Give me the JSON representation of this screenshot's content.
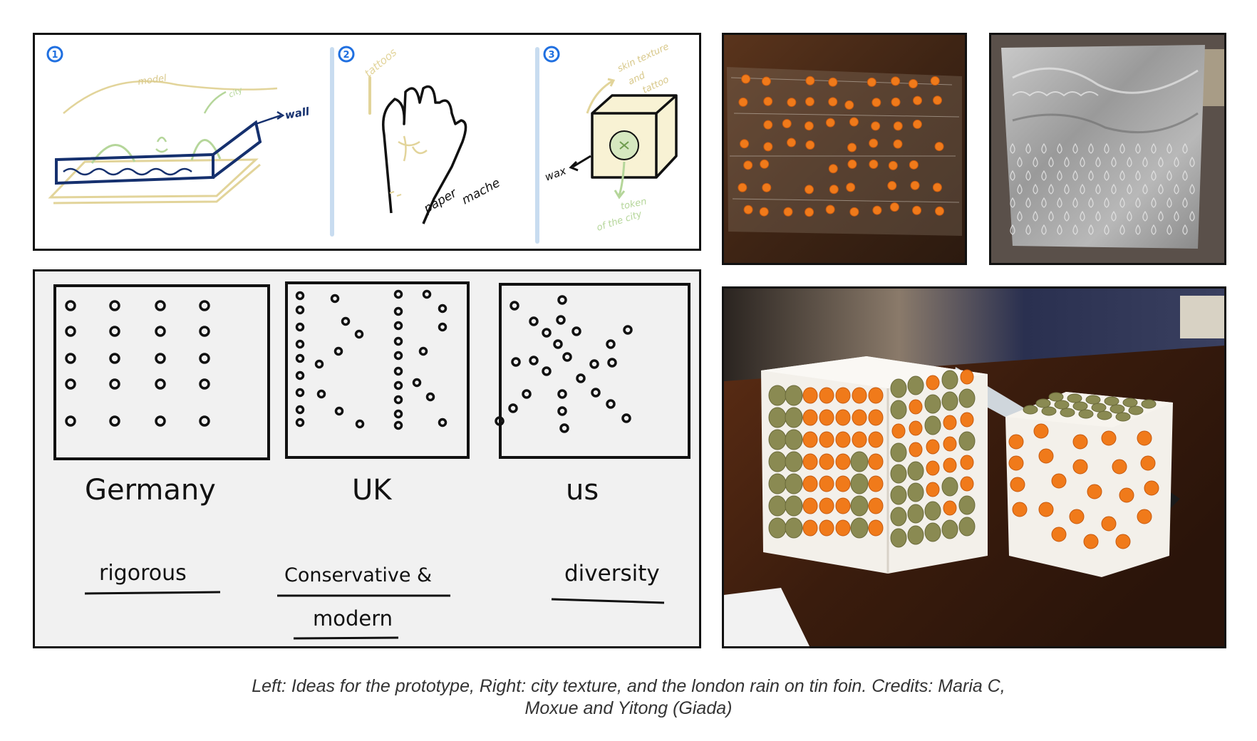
{
  "sketch_panel": {
    "markers": [
      "1",
      "2",
      "3"
    ],
    "model_label": "model",
    "city_label": "city",
    "wall_label": "wall",
    "tattoos_label": "tattoos",
    "paper_mache_label_1": "paper",
    "paper_mache_label_2": "mache",
    "skin_texture_label_1": "skin texture",
    "skin_texture_label_2": "and",
    "skin_texture_label_3": "tattoo",
    "wax_label": "wax",
    "token_label_1": "token",
    "token_label_2": "of the city"
  },
  "patterns_panel": {
    "countries": [
      "Germany",
      "UK",
      "us"
    ],
    "words": [
      "rigorous",
      "Conservative &",
      "modern",
      "diversity"
    ]
  },
  "photos": {
    "lentils_on_plastic": "",
    "tin_foil_rain": "",
    "clay_cubes_with_lentils": ""
  },
  "caption": {
    "line1": "Left: Ideas for the prototype, Right: city texture, and the london rain on tin foin. Credits: Maria C,",
    "line2": "Moxue and Yitong (Giada)"
  },
  "colors": {
    "frame": "#111111",
    "sketch_blue": "#1f6fe0",
    "sketch_navy": "#15306e",
    "sketch_beige": "#e2d49a",
    "sketch_green": "#b5d69a",
    "divider_blue": "#c8dcf0",
    "lentil_orange": "#f07a1a",
    "lentil_green": "#8a8a52",
    "table_brown": "#4a2a17",
    "foil_grey": "#a6a6a6",
    "paper_grey": "#f1f1f1"
  }
}
